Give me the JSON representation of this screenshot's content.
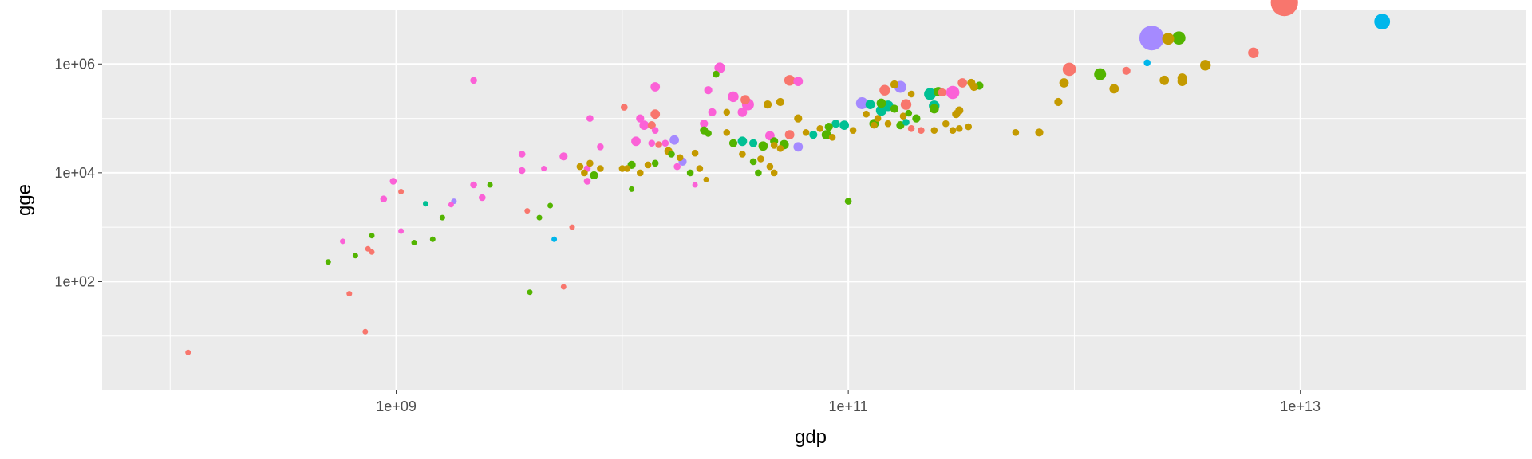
{
  "chart_data": {
    "type": "scatter",
    "title": "",
    "xlabel": "gdp",
    "ylabel": "gge",
    "x_scale": "log10",
    "y_scale": "log10",
    "xlim": [
      50000000.0,
      100000000000000.0
    ],
    "ylim": [
      1,
      10000000.0
    ],
    "x_ticks": [
      {
        "value": 1000000000.0,
        "label": "1e+09"
      },
      {
        "value": 100000000000.0,
        "label": "1e+11"
      },
      {
        "value": 10000000000000.0,
        "label": "1e+13"
      }
    ],
    "y_ticks": [
      {
        "value": 100,
        "label": "1e+02"
      },
      {
        "value": 10000,
        "label": "1e+04"
      },
      {
        "value": 1000000,
        "label": "1e+06"
      }
    ],
    "grid": true,
    "legend": "none",
    "colors": {
      "panel": "#ebebeb",
      "grid": "#ffffff",
      "red": "#f8766d",
      "olive": "#c49a00",
      "green": "#53b400",
      "teal": "#00c094",
      "blue": "#00b6eb",
      "purple": "#a58aff",
      "pink": "#fb61d7"
    },
    "points": [
      {
        "x": 55000000000.0,
        "y": 50000.0,
        "c": "red",
        "s": 1.0
      },
      {
        "x": 950000000000.0,
        "y": 800000.0,
        "c": "red",
        "s": 1.3
      },
      {
        "x": 2200000000000.0,
        "y": 3000000.0,
        "c": "purple",
        "s": 2.2
      },
      {
        "x": 2900000000000.0,
        "y": 3000000.0,
        "c": "green",
        "s": 1.3
      },
      {
        "x": 2600000000000.0,
        "y": 2900000.0,
        "c": "olive",
        "s": 1.2
      },
      {
        "x": 8500000000000.0,
        "y": 13500000.0,
        "c": "red",
        "s": 2.4
      },
      {
        "x": 23000000000000.0,
        "y": 6000000.0,
        "c": "blue",
        "s": 1.5
      },
      {
        "x": 6200000000000.0,
        "y": 1600000.0,
        "c": "red",
        "s": 1.1
      },
      {
        "x": 3800000000000.0,
        "y": 950000.0,
        "c": "olive",
        "s": 1.1
      },
      {
        "x": 2100000000000.0,
        "y": 1050000.0,
        "c": "blue",
        "s": 0.8
      },
      {
        "x": 1300000000000.0,
        "y": 650000.0,
        "c": "green",
        "s": 1.2
      },
      {
        "x": 1700000000000.0,
        "y": 750000.0,
        "c": "red",
        "s": 0.9
      },
      {
        "x": 2500000000000.0,
        "y": 500000.0,
        "c": "olive",
        "s": 1.0
      },
      {
        "x": 3000000000000.0,
        "y": 550000.0,
        "c": "olive",
        "s": 1.0
      },
      {
        "x": 3000000000000.0,
        "y": 480000.0,
        "c": "olive",
        "s": 1.0
      },
      {
        "x": 1500000000000.0,
        "y": 350000.0,
        "c": "olive",
        "s": 1.0
      },
      {
        "x": 900000000000.0,
        "y": 450000.0,
        "c": "olive",
        "s": 1.0
      },
      {
        "x": 850000000000.0,
        "y": 200000.0,
        "c": "olive",
        "s": 0.9
      },
      {
        "x": 550000000000.0,
        "y": 55000.0,
        "c": "olive",
        "s": 0.8
      },
      {
        "x": 380000000000.0,
        "y": 400000.0,
        "c": "green",
        "s": 0.9
      },
      {
        "x": 350000000000.0,
        "y": 450000.0,
        "c": "olive",
        "s": 0.9
      },
      {
        "x": 320000000000.0,
        "y": 450000.0,
        "c": "red",
        "s": 1.0
      },
      {
        "x": 290000000000.0,
        "y": 300000.0,
        "c": "pink",
        "s": 1.3
      },
      {
        "x": 260000000000.0,
        "y": 300000.0,
        "c": "red",
        "s": 0.9
      },
      {
        "x": 230000000000.0,
        "y": 280000.0,
        "c": "teal",
        "s": 1.2
      },
      {
        "x": 160000000000.0,
        "y": 420000.0,
        "c": "olive",
        "s": 0.9
      },
      {
        "x": 170000000000.0,
        "y": 380000.0,
        "c": "purple",
        "s": 1.2
      },
      {
        "x": 190000000000.0,
        "y": 280000.0,
        "c": "olive",
        "s": 0.8
      },
      {
        "x": 250000000000.0,
        "y": 310000.0,
        "c": "green",
        "s": 1.0
      },
      {
        "x": 145000000000.0,
        "y": 330000.0,
        "c": "red",
        "s": 1.1
      },
      {
        "x": 180000000000.0,
        "y": 180000.0,
        "c": "red",
        "s": 1.1
      },
      {
        "x": 140000000000.0,
        "y": 190000.0,
        "c": "green",
        "s": 1.0
      },
      {
        "x": 125000000000.0,
        "y": 180000.0,
        "c": "teal",
        "s": 1.0
      },
      {
        "x": 115000000000.0,
        "y": 190000.0,
        "c": "purple",
        "s": 1.2
      },
      {
        "x": 120000000000.0,
        "y": 120000.0,
        "c": "olive",
        "s": 0.8
      },
      {
        "x": 135000000000.0,
        "y": 100000.0,
        "c": "olive",
        "s": 0.8
      },
      {
        "x": 140000000000.0,
        "y": 140000.0,
        "c": "teal",
        "s": 1.1
      },
      {
        "x": 150000000000.0,
        "y": 170000.0,
        "c": "teal",
        "s": 1.1
      },
      {
        "x": 160000000000.0,
        "y": 150000.0,
        "c": "green",
        "s": 0.9
      },
      {
        "x": 240000000000.0,
        "y": 170000.0,
        "c": "teal",
        "s": 1.1
      },
      {
        "x": 240000000000.0,
        "y": 150000.0,
        "c": "green",
        "s": 1.0
      },
      {
        "x": 130000000000.0,
        "y": 80000.0,
        "c": "green",
        "s": 1.0
      },
      {
        "x": 150000000000.0,
        "y": 80000.0,
        "c": "olive",
        "s": 0.8
      },
      {
        "x": 170000000000.0,
        "y": 75000.0,
        "c": "green",
        "s": 0.9
      },
      {
        "x": 175000000000.0,
        "y": 110000.0,
        "c": "olive",
        "s": 0.8
      },
      {
        "x": 180000000000.0,
        "y": 85000.0,
        "c": "teal",
        "s": 0.8
      },
      {
        "x": 190000000000.0,
        "y": 65000.0,
        "c": "red",
        "s": 0.8
      },
      {
        "x": 185000000000.0,
        "y": 125000.0,
        "c": "green",
        "s": 0.8
      },
      {
        "x": 200000000000.0,
        "y": 100000.0,
        "c": "green",
        "s": 0.9
      },
      {
        "x": 210000000000.0,
        "y": 60000.0,
        "c": "red",
        "s": 0.8
      },
      {
        "x": 240000000000.0,
        "y": 60000.0,
        "c": "olive",
        "s": 0.8
      },
      {
        "x": 270000000000.0,
        "y": 80000.0,
        "c": "olive",
        "s": 0.8
      },
      {
        "x": 300000000000.0,
        "y": 120000.0,
        "c": "olive",
        "s": 0.9
      },
      {
        "x": 310000000000.0,
        "y": 65000.0,
        "c": "olive",
        "s": 0.8
      },
      {
        "x": 340000000000.0,
        "y": 70000.0,
        "c": "olive",
        "s": 0.8
      },
      {
        "x": 360000000000.0,
        "y": 380000.0,
        "c": "olive",
        "s": 0.9
      },
      {
        "x": 310000000000.0,
        "y": 140000.0,
        "c": "olive",
        "s": 0.9
      },
      {
        "x": 290000000000.0,
        "y": 60000.0,
        "c": "olive",
        "s": 0.8
      },
      {
        "x": 700000000000.0,
        "y": 55000.0,
        "c": "olive",
        "s": 0.9
      },
      {
        "x": 105000000000.0,
        "y": 60000.0,
        "c": "olive",
        "s": 0.8
      },
      {
        "x": 130000000000.0,
        "y": 75000.0,
        "c": "olive",
        "s": 0.8
      },
      {
        "x": 100000000000.0,
        "y": 3000.0,
        "c": "green",
        "s": 0.8
      },
      {
        "x": 88000000000.0,
        "y": 80000.0,
        "c": "teal",
        "s": 0.9
      },
      {
        "x": 96000000000.0,
        "y": 75000.0,
        "c": "teal",
        "s": 1.0
      },
      {
        "x": 82000000000.0,
        "y": 70000.0,
        "c": "green",
        "s": 0.9
      },
      {
        "x": 80000000000.0,
        "y": 50000.0,
        "c": "green",
        "s": 1.0
      },
      {
        "x": 75000000000.0,
        "y": 65000.0,
        "c": "olive",
        "s": 0.8
      },
      {
        "x": 70000000000.0,
        "y": 50000.0,
        "c": "teal",
        "s": 0.9
      },
      {
        "x": 65000000000.0,
        "y": 55000.0,
        "c": "olive",
        "s": 0.8
      },
      {
        "x": 85000000000.0,
        "y": 45000.0,
        "c": "olive",
        "s": 0.8
      },
      {
        "x": 60000000000.0,
        "y": 30000.0,
        "c": "purple",
        "s": 1.0
      },
      {
        "x": 60000000000.0,
        "y": 100000.0,
        "c": "olive",
        "s": 0.9
      },
      {
        "x": 55000000000.0,
        "y": 500000.0,
        "c": "red",
        "s": 1.1
      },
      {
        "x": 60000000000.0,
        "y": 480000.0,
        "c": "pink",
        "s": 1.0
      },
      {
        "x": 50000000000.0,
        "y": 200000.0,
        "c": "olive",
        "s": 0.9
      },
      {
        "x": 42000000000.0,
        "y": 31000.0,
        "c": "green",
        "s": 1.0
      },
      {
        "x": 38000000000.0,
        "y": 35000.0,
        "c": "teal",
        "s": 0.9
      },
      {
        "x": 47000000000.0,
        "y": 32000.0,
        "c": "olive",
        "s": 0.8
      },
      {
        "x": 47000000000.0,
        "y": 38000.0,
        "c": "green",
        "s": 0.9
      },
      {
        "x": 45000000000.0,
        "y": 48000.0,
        "c": "pink",
        "s": 1.0
      },
      {
        "x": 52000000000.0,
        "y": 33000.0,
        "c": "green",
        "s": 1.0
      },
      {
        "x": 50000000000.0,
        "y": 28000.0,
        "c": "olive",
        "s": 0.8
      },
      {
        "x": 41000000000.0,
        "y": 18000.0,
        "c": "olive",
        "s": 0.8
      },
      {
        "x": 40000000000.0,
        "y": 10000.0,
        "c": "green",
        "s": 0.8
      },
      {
        "x": 45000000000.0,
        "y": 13000.0,
        "c": "olive",
        "s": 0.8
      },
      {
        "x": 38000000000.0,
        "y": 16000.0,
        "c": "green",
        "s": 0.8
      },
      {
        "x": 47000000000.0,
        "y": 10000.0,
        "c": "olive",
        "s": 0.8
      },
      {
        "x": 34000000000.0,
        "y": 22000.0,
        "c": "olive",
        "s": 0.8
      },
      {
        "x": 31000000000.0,
        "y": 35000.0,
        "c": "green",
        "s": 0.9
      },
      {
        "x": 34000000000.0,
        "y": 38000.0,
        "c": "teal",
        "s": 1.0
      },
      {
        "x": 29000000000.0,
        "y": 55000.0,
        "c": "olive",
        "s": 0.8
      },
      {
        "x": 31000000000.0,
        "y": 250000.0,
        "c": "pink",
        "s": 1.1
      },
      {
        "x": 35000000000.0,
        "y": 220000.0,
        "c": "red",
        "s": 1.0
      },
      {
        "x": 36000000000.0,
        "y": 180000.0,
        "c": "pink",
        "s": 1.2
      },
      {
        "x": 44000000000.0,
        "y": 180000.0,
        "c": "olive",
        "s": 0.9
      },
      {
        "x": 34000000000.0,
        "y": 130000.0,
        "c": "pink",
        "s": 1.0
      },
      {
        "x": 29000000000.0,
        "y": 130000.0,
        "c": "olive",
        "s": 0.8
      },
      {
        "x": 25000000000.0,
        "y": 130000.0,
        "c": "pink",
        "s": 0.9
      },
      {
        "x": 27000000000.0,
        "y": 850000.0,
        "c": "pink",
        "s": 1.1
      },
      {
        "x": 26000000000.0,
        "y": 650000.0,
        "c": "green",
        "s": 0.8
      },
      {
        "x": 24000000000.0,
        "y": 330000.0,
        "c": "pink",
        "s": 0.9
      },
      {
        "x": 23000000000.0,
        "y": 80000.0,
        "c": "pink",
        "s": 0.9
      },
      {
        "x": 23000000000.0,
        "y": 60000.0,
        "c": "green",
        "s": 0.9
      },
      {
        "x": 24000000000.0,
        "y": 53000.0,
        "c": "green",
        "s": 0.8
      },
      {
        "x": 21000000000.0,
        "y": 23000.0,
        "c": "olive",
        "s": 0.8
      },
      {
        "x": 22000000000.0,
        "y": 12000.0,
        "c": "olive",
        "s": 0.8
      },
      {
        "x": 23500000000.0,
        "y": 7500.0,
        "c": "olive",
        "s": 0.7
      },
      {
        "x": 20000000000.0,
        "y": 10000.0,
        "c": "green",
        "s": 0.8
      },
      {
        "x": 21000000000.0,
        "y": 6000.0,
        "c": "pink",
        "s": 0.7
      },
      {
        "x": 18500000000.0,
        "y": 16000.0,
        "c": "purple",
        "s": 0.9
      },
      {
        "x": 18000000000.0,
        "y": 19000.0,
        "c": "olive",
        "s": 0.8
      },
      {
        "x": 17500000000.0,
        "y": 13000.0,
        "c": "pink",
        "s": 0.8
      },
      {
        "x": 16000000000.0,
        "y": 25000.0,
        "c": "olive",
        "s": 0.9
      },
      {
        "x": 16500000000.0,
        "y": 22000.0,
        "c": "green",
        "s": 0.8
      },
      {
        "x": 15500000000.0,
        "y": 35000.0,
        "c": "pink",
        "s": 0.8
      },
      {
        "x": 17000000000.0,
        "y": 40000.0,
        "c": "purple",
        "s": 1.0
      },
      {
        "x": 14000000000.0,
        "y": 15000.0,
        "c": "green",
        "s": 0.8
      },
      {
        "x": 13000000000.0,
        "y": 14000.0,
        "c": "olive",
        "s": 0.8
      },
      {
        "x": 14500000000.0,
        "y": 33000.0,
        "c": "red",
        "s": 0.8
      },
      {
        "x": 13500000000.0,
        "y": 35000.0,
        "c": "pink",
        "s": 0.8
      },
      {
        "x": 14000000000.0,
        "y": 60000.0,
        "c": "pink",
        "s": 0.8
      },
      {
        "x": 13500000000.0,
        "y": 75000.0,
        "c": "red",
        "s": 0.9
      },
      {
        "x": 14000000000.0,
        "y": 380000.0,
        "c": "pink",
        "s": 1.0
      },
      {
        "x": 14000000000.0,
        "y": 120000.0,
        "c": "red",
        "s": 1.0
      },
      {
        "x": 12000000000.0,
        "y": 100000.0,
        "c": "pink",
        "s": 0.9
      },
      {
        "x": 12500000000.0,
        "y": 75000.0,
        "c": "pink",
        "s": 1.0
      },
      {
        "x": 11500000000.0,
        "y": 38000.0,
        "c": "pink",
        "s": 1.0
      },
      {
        "x": 12000000000.0,
        "y": 10000.0,
        "c": "olive",
        "s": 0.8
      },
      {
        "x": 10500000000.0,
        "y": 12000.0,
        "c": "olive",
        "s": 0.8
      },
      {
        "x": 11000000000.0,
        "y": 14000.0,
        "c": "green",
        "s": 0.9
      },
      {
        "x": 11000000000.0,
        "y": 5000.0,
        "c": "green",
        "s": 0.7
      },
      {
        "x": 10000000000.0,
        "y": 12000.0,
        "c": "olive",
        "s": 0.8
      },
      {
        "x": 10200000000.0,
        "y": 160000.0,
        "c": "red",
        "s": 0.8
      },
      {
        "x": 8000000000.0,
        "y": 12000.0,
        "c": "olive",
        "s": 0.8
      },
      {
        "x": 7500000000.0,
        "y": 9000.0,
        "c": "green",
        "s": 0.9
      },
      {
        "x": 7000000000.0,
        "y": 12000.0,
        "c": "pink",
        "s": 0.8
      },
      {
        "x": 7200000000.0,
        "y": 15000.0,
        "c": "olive",
        "s": 0.8
      },
      {
        "x": 6500000000.0,
        "y": 13000.0,
        "c": "olive",
        "s": 0.8
      },
      {
        "x": 6800000000.0,
        "y": 10000.0,
        "c": "olive",
        "s": 0.8
      },
      {
        "x": 7000000000.0,
        "y": 7000.0,
        "c": "pink",
        "s": 0.8
      },
      {
        "x": 8000000000.0,
        "y": 30000.0,
        "c": "pink",
        "s": 0.8
      },
      {
        "x": 7200000000.0,
        "y": 100000.0,
        "c": "pink",
        "s": 0.8
      },
      {
        "x": 5500000000.0,
        "y": 20000.0,
        "c": "pink",
        "s": 0.9
      },
      {
        "x": 4500000000.0,
        "y": 12000.0,
        "c": "pink",
        "s": 0.7
      },
      {
        "x": 6000000000.0,
        "y": 1000.0,
        "c": "red",
        "s": 0.7
      },
      {
        "x": 5000000000.0,
        "y": 600,
        "c": "blue",
        "s": 0.7
      },
      {
        "x": 4800000000.0,
        "y": 2500.0,
        "c": "green",
        "s": 0.7
      },
      {
        "x": 4300000000.0,
        "y": 1500.0,
        "c": "green",
        "s": 0.7
      },
      {
        "x": 3800000000.0,
        "y": 2000.0,
        "c": "red",
        "s": 0.7
      },
      {
        "x": 3600000000.0,
        "y": 22000.0,
        "c": "pink",
        "s": 0.8
      },
      {
        "x": 3600000000.0,
        "y": 11000.0,
        "c": "pink",
        "s": 0.8
      },
      {
        "x": 3900000000.0,
        "y": 64,
        "c": "green",
        "s": 0.7
      },
      {
        "x": 5500000000.0,
        "y": 80,
        "c": "red",
        "s": 0.7
      },
      {
        "x": 2200000000.0,
        "y": 6000.0,
        "c": "pink",
        "s": 0.8
      },
      {
        "x": 2400000000.0,
        "y": 3500.0,
        "c": "pink",
        "s": 0.8
      },
      {
        "x": 2600000000.0,
        "y": 6000.0,
        "c": "green",
        "s": 0.7
      },
      {
        "x": 2200000000.0,
        "y": 500000.0,
        "c": "pink",
        "s": 0.8
      },
      {
        "x": 1800000000.0,
        "y": 3000.0,
        "c": "purple",
        "s": 0.7
      },
      {
        "x": 1750000000.0,
        "y": 2600.0,
        "c": "pink",
        "s": 0.7
      },
      {
        "x": 1600000000.0,
        "y": 1500.0,
        "c": "green",
        "s": 0.7
      },
      {
        "x": 1450000000.0,
        "y": 600,
        "c": "green",
        "s": 0.7
      },
      {
        "x": 1200000000.0,
        "y": 520,
        "c": "green",
        "s": 0.7
      },
      {
        "x": 1350000000.0,
        "y": 2700.0,
        "c": "teal",
        "s": 0.7
      },
      {
        "x": 1050000000.0,
        "y": 4500.0,
        "c": "red",
        "s": 0.7
      },
      {
        "x": 970000000.0,
        "y": 7000.0,
        "c": "pink",
        "s": 0.8
      },
      {
        "x": 1050000000.0,
        "y": 850,
        "c": "pink",
        "s": 0.7
      },
      {
        "x": 880000000.0,
        "y": 3300.0,
        "c": "pink",
        "s": 0.8
      },
      {
        "x": 780000000.0,
        "y": 700,
        "c": "green",
        "s": 0.7
      },
      {
        "x": 750000000.0,
        "y": 400,
        "c": "red",
        "s": 0.7
      },
      {
        "x": 780000000.0,
        "y": 350,
        "c": "red",
        "s": 0.7
      },
      {
        "x": 660000000.0,
        "y": 300,
        "c": "green",
        "s": 0.7
      },
      {
        "x": 580000000.0,
        "y": 550,
        "c": "pink",
        "s": 0.7
      },
      {
        "x": 500000000.0,
        "y": 230,
        "c": "green",
        "s": 0.7
      },
      {
        "x": 620000000.0,
        "y": 60,
        "c": "red",
        "s": 0.7
      },
      {
        "x": 730000000.0,
        "y": 12,
        "c": "red",
        "s": 0.7
      },
      {
        "x": 120000000.0,
        "y": 5,
        "c": "red",
        "s": 0.7
      }
    ]
  }
}
